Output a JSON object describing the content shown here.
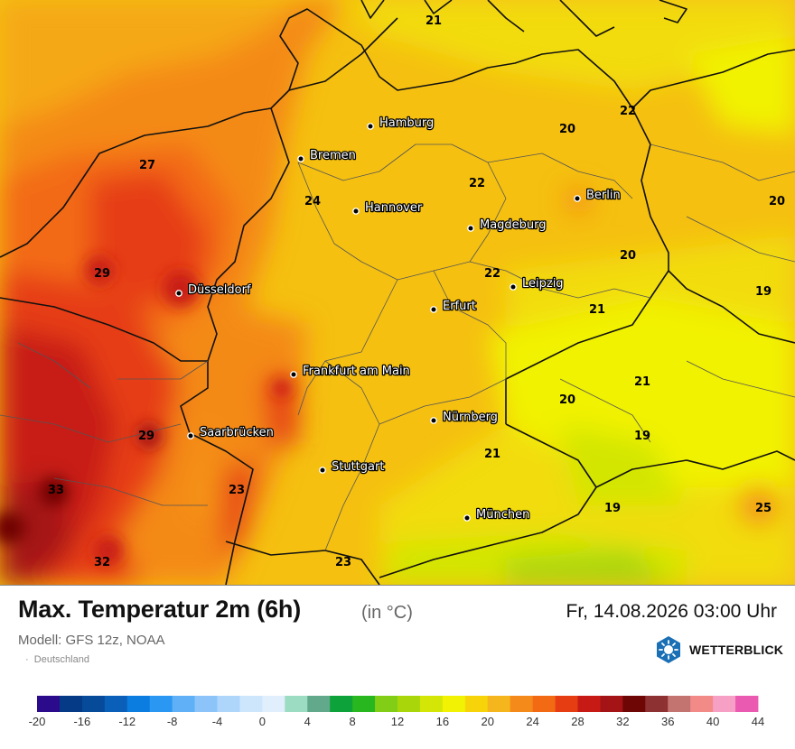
{
  "title": "Max. Temperatur 2m (6h)",
  "unit": "(in °C)",
  "datetime": "Fr, 14.08.2026 03:00 Uhr",
  "model": "Modell: GFS 12z, NOAA",
  "region": "Deutschland",
  "region_bullet": "·",
  "brand": {
    "name": "WETTERBLICK",
    "icon": "sun-hexagon-icon",
    "color": "#1a6fb5"
  },
  "cities": [
    {
      "id": "hamburg",
      "name": "Hamburg"
    },
    {
      "id": "bremen",
      "name": "Bremen"
    },
    {
      "id": "hannover",
      "name": "Hannover"
    },
    {
      "id": "berlin",
      "name": "Berlin"
    },
    {
      "id": "magdeburg",
      "name": "Magdeburg"
    },
    {
      "id": "duesseldorf",
      "name": "Düsseldorf"
    },
    {
      "id": "leipzig",
      "name": "Leipzig"
    },
    {
      "id": "erfurt",
      "name": "Erfurt"
    },
    {
      "id": "frankfurt",
      "name": "Frankfurt am Main"
    },
    {
      "id": "nuernberg",
      "name": "Nürnberg"
    },
    {
      "id": "saarbruecken",
      "name": "Saarbrücken"
    },
    {
      "id": "stuttgart",
      "name": "Stuttgart"
    },
    {
      "id": "muenchen",
      "name": "München"
    }
  ],
  "temperature_labels": [
    "21",
    "22",
    "20",
    "27",
    "24",
    "22",
    "20",
    "20",
    "29",
    "22",
    "19",
    "21",
    "20",
    "21",
    "29",
    "19",
    "21",
    "33",
    "23",
    "19",
    "25",
    "32",
    "23"
  ],
  "legend": {
    "ticks": [
      "-20",
      "-16",
      "-12",
      "-8",
      "-4",
      "0",
      "4",
      "8",
      "12",
      "16",
      "20",
      "24",
      "28",
      "32",
      "36",
      "40",
      "44"
    ],
    "colors": [
      "#2c0a8c",
      "#053a86",
      "#064a9a",
      "#0a5fb8",
      "#0b7de0",
      "#2a97f3",
      "#60b0f7",
      "#8cc4f9",
      "#aed6fb",
      "#cde6fc",
      "#e1eefc",
      "#9bdcc3",
      "#61a98a",
      "#0ea33a",
      "#29b71f",
      "#82ce17",
      "#a9d60b",
      "#d3e606",
      "#f1f204",
      "#f7d40a",
      "#f5b51c",
      "#f48a19",
      "#f36a14",
      "#e63e12",
      "#c81a14",
      "#a41315",
      "#6e0606",
      "#8e3133",
      "#c47470",
      "#f28a88",
      "#f7a0c6",
      "#ea5ab0"
    ]
  }
}
